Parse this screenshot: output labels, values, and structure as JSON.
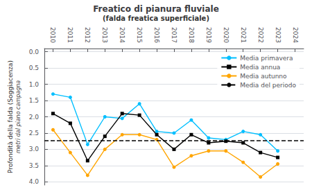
{
  "chart_data": {
    "type": "line",
    "title": "Freatico di pianura fluviale",
    "subtitle": "(falda freatica superficiale)",
    "ylabel": "Profondità della falda (Soggiacenza)",
    "ylabel_sub": "metri dal piano campagna",
    "xlim": [
      2009.5,
      2024.5
    ],
    "xticks": [
      2010,
      2011,
      2012,
      2013,
      2014,
      2015,
      2016,
      2017,
      2018,
      2019,
      2020,
      2021,
      2022,
      2023,
      2024
    ],
    "ylim": [
      4.1,
      -0.1
    ],
    "yticks": [
      {
        "value": 0,
        "label": "0.0"
      },
      0.5,
      {
        "value": 1,
        "label": "1.0"
      },
      1.5,
      {
        "value": 2,
        "label": "2.0"
      },
      2.5,
      {
        "value": 3,
        "label": "3.0"
      },
      3.5,
      {
        "value": 4,
        "label": "4.0"
      }
    ],
    "grid": true,
    "legend": "upper right",
    "series": [
      {
        "name": "Media primavera",
        "color": "#00BFFF",
        "marker": "circle",
        "x": [
          2010,
          2011,
          2012,
          2013,
          2014,
          2015,
          2016,
          2017,
          2018,
          2019,
          2020,
          2021,
          2022,
          2023
        ],
        "values": [
          1.3,
          1.4,
          2.85,
          2.0,
          2.05,
          1.6,
          2.45,
          2.5,
          2.1,
          2.65,
          2.7,
          2.45,
          2.55,
          3.05
        ]
      },
      {
        "name": "Media annua",
        "color": "#000000",
        "marker": "square",
        "x": [
          2010,
          2011,
          2012,
          2013,
          2014,
          2015,
          2016,
          2017,
          2018,
          2019,
          2020,
          2021,
          2022,
          2023
        ],
        "values": [
          1.9,
          2.2,
          3.35,
          2.6,
          1.9,
          1.95,
          2.55,
          3.0,
          2.55,
          2.8,
          2.75,
          2.8,
          3.1,
          3.25
        ]
      },
      {
        "name": "Media autunno",
        "color": "#FFA500",
        "marker": "circle",
        "x": [
          2010,
          2011,
          2012,
          2013,
          2014,
          2015,
          2016,
          2017,
          2018,
          2019,
          2020,
          2021,
          2022,
          2023
        ],
        "values": [
          2.4,
          3.1,
          3.8,
          3.0,
          2.55,
          2.55,
          2.7,
          3.55,
          3.2,
          3.05,
          3.05,
          3.4,
          3.85,
          3.45
        ]
      },
      {
        "name": "Media del periodo",
        "type": "hline",
        "color": "#000000",
        "line_style": "dashed",
        "values": [
          2.72
        ]
      }
    ]
  }
}
